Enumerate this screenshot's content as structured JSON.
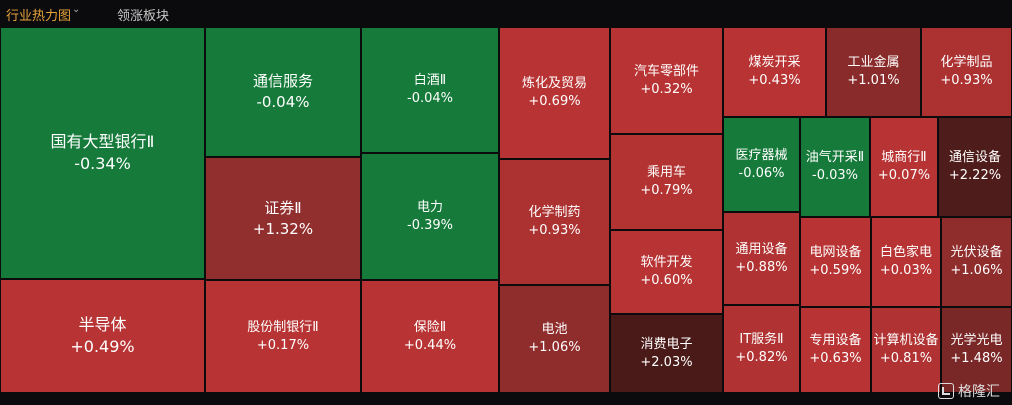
{
  "tabs": [
    {
      "label": "行业热力图",
      "active": true
    },
    {
      "label": "领涨板块",
      "active": false
    }
  ],
  "watermark": "格隆汇",
  "colors": {
    "green": "#157a3a",
    "red_light": "#b83434",
    "red_mid": "#a32e2e",
    "red_dark": "#7a2727",
    "red_deep": "#4a1a18"
  },
  "cells": [
    {
      "name": "国有大型银行Ⅱ",
      "pct": "-0.34%"
    },
    {
      "name": "半导体",
      "pct": "+0.49%"
    },
    {
      "name": "通信服务",
      "pct": "-0.04%"
    },
    {
      "name": "证券Ⅱ",
      "pct": "+1.32%"
    },
    {
      "name": "股份制银行Ⅱ",
      "pct": "+0.17%"
    },
    {
      "name": "白酒Ⅱ",
      "pct": "-0.04%"
    },
    {
      "name": "电力",
      "pct": "-0.39%"
    },
    {
      "name": "保险Ⅱ",
      "pct": "+0.44%"
    },
    {
      "name": "炼化及贸易",
      "pct": "+0.69%"
    },
    {
      "name": "化学制药",
      "pct": "+0.93%"
    },
    {
      "name": "电池",
      "pct": "+1.06%"
    },
    {
      "name": "汽车零部件",
      "pct": "+0.32%"
    },
    {
      "name": "乘用车",
      "pct": "+0.79%"
    },
    {
      "name": "软件开发",
      "pct": "+0.60%"
    },
    {
      "name": "消费电子",
      "pct": "+2.03%"
    },
    {
      "name": "煤炭开采",
      "pct": "+0.43%"
    },
    {
      "name": "工业金属",
      "pct": "+1.01%"
    },
    {
      "name": "化学制品",
      "pct": "+0.93%"
    },
    {
      "name": "医疗器械",
      "pct": "-0.06%"
    },
    {
      "name": "油气开采Ⅱ",
      "pct": "-0.03%"
    },
    {
      "name": "城商行Ⅱ",
      "pct": "+0.07%"
    },
    {
      "name": "通信设备",
      "pct": "+2.22%"
    },
    {
      "name": "通用设备",
      "pct": "+0.88%"
    },
    {
      "name": "电网设备",
      "pct": "+0.59%"
    },
    {
      "name": "白色家电",
      "pct": "+0.03%"
    },
    {
      "name": "光伏设备",
      "pct": "+1.06%"
    },
    {
      "name": "IT服务Ⅱ",
      "pct": "+0.82%"
    },
    {
      "name": "专用设备",
      "pct": "+0.63%"
    },
    {
      "name": "计算机设备",
      "pct": "+0.81%"
    },
    {
      "name": "光学光电",
      "pct": "+1.48%"
    }
  ]
}
